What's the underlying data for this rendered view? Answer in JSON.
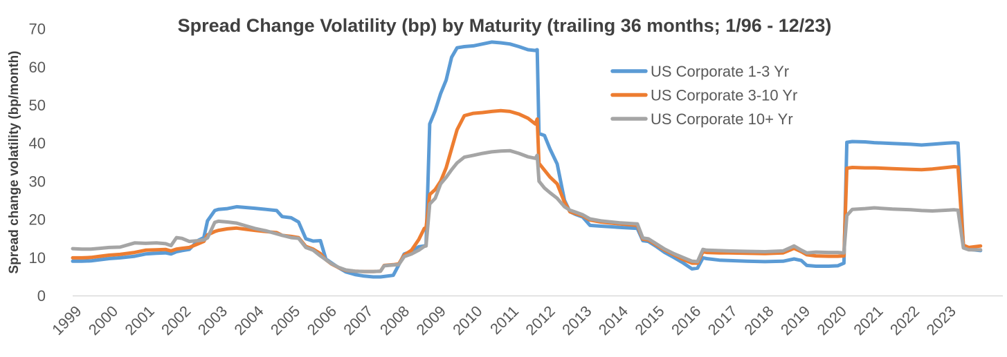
{
  "title": "Spread Change Volatility (bp) by Maturity (trailing 36 months; 1/96 - 12/23)",
  "y_axis": {
    "label": "Spread change volatility (bp/month)",
    "ticks": [
      0,
      10,
      20,
      30,
      40,
      50,
      60,
      70
    ],
    "range": [
      0,
      70
    ]
  },
  "x_axis": {
    "tick_labels": [
      "1999",
      "2000",
      "2001",
      "2002",
      "2003",
      "2004",
      "2005",
      "2006",
      "2007",
      "2008",
      "2009",
      "2010",
      "2011",
      "2012",
      "2013",
      "2014",
      "2015",
      "2016",
      "2017",
      "2018",
      "2019",
      "2020",
      "2021",
      "2022",
      "2023"
    ]
  },
  "legend": [
    {
      "label": "US Corporate 1-3 Yr",
      "color": "#5B9BD5"
    },
    {
      "label": "US Corporate 3-10 Yr",
      "color": "#ED7D31"
    },
    {
      "label": "US Corporate 10+ Yr",
      "color": "#A5A5A5"
    }
  ],
  "colors": {
    "series_blue": "#5B9BD5",
    "series_orange": "#ED7D31",
    "series_gray": "#A5A5A5",
    "tick_text": "#595959",
    "title_text": "#404040",
    "axis_line": "#D9D9D9"
  },
  "chart_data": {
    "type": "line",
    "title": "Spread Change Volatility (bp) by Maturity (trailing 36 months; 1/96 - 12/23)",
    "xlabel": "",
    "ylabel": "Spread change volatility (bp/month)",
    "ylim": [
      0,
      70
    ],
    "xlim": [
      1999,
      2024
    ],
    "grid": false,
    "legend_position": "inside-top-right",
    "x_units": "decimal years (monthly observations, trailing 36-month window)",
    "y_units": "bp/month",
    "x": [
      1999.0,
      1999.25,
      1999.5,
      1999.75,
      2000.0,
      2000.3,
      2000.7,
      2001.0,
      2001.3,
      2001.55,
      2001.7,
      2001.85,
      2002.0,
      2002.2,
      2002.45,
      2002.6,
      2002.7,
      2002.9,
      2003.0,
      2003.25,
      2003.5,
      2003.75,
      2004.0,
      2004.3,
      2004.6,
      2004.75,
      2005.0,
      2005.2,
      2005.4,
      2005.6,
      2005.8,
      2005.95,
      2006.1,
      2006.3,
      2006.5,
      2006.75,
      2007.0,
      2007.25,
      2007.45,
      2007.55,
      2007.8,
      2007.95,
      2008.1,
      2008.3,
      2008.5,
      2008.65,
      2008.7,
      2008.8,
      2008.95,
      2009.1,
      2009.25,
      2009.4,
      2009.55,
      2009.75,
      2010.0,
      2010.25,
      2010.5,
      2010.75,
      2011.0,
      2011.25,
      2011.5,
      2011.7,
      2011.75,
      2011.8,
      2011.95,
      2012.1,
      2012.3,
      2012.5,
      2012.65,
      2012.8,
      2013.0,
      2013.2,
      2013.5,
      2014.0,
      2014.5,
      2014.65,
      2014.8,
      2015.0,
      2015.25,
      2015.5,
      2015.75,
      2016.0,
      2016.15,
      2016.3,
      2016.4,
      2016.75,
      2017.0,
      2017.5,
      2018.0,
      2018.5,
      2018.8,
      2019.0,
      2019.15,
      2019.4,
      2019.75,
      2020.0,
      2020.17,
      2020.25,
      2020.4,
      2020.75,
      2021.0,
      2021.5,
      2022.0,
      2022.3,
      2022.6,
      2023.0,
      2023.2,
      2023.3,
      2023.45,
      2023.6,
      2023.92
    ],
    "series": [
      {
        "name": "US Corporate 1-3 Yr",
        "color": "#5B9BD5",
        "values": [
          9.0,
          9.0,
          9.1,
          9.4,
          9.7,
          9.9,
          10.3,
          10.9,
          11.1,
          11.2,
          10.9,
          11.5,
          11.8,
          12.1,
          14.5,
          15.2,
          19.6,
          22.3,
          22.6,
          22.8,
          23.3,
          23.1,
          22.9,
          22.6,
          22.3,
          20.7,
          20.4,
          19.3,
          14.9,
          14.3,
          14.4,
          9.6,
          8.6,
          7.3,
          6.2,
          5.5,
          5.1,
          4.9,
          4.9,
          5.0,
          5.3,
          8.0,
          10.9,
          11.6,
          12.8,
          13.0,
          13.2,
          45.0,
          48.5,
          53.0,
          56.5,
          62.5,
          65.0,
          65.3,
          65.5,
          66.0,
          66.5,
          66.3,
          66.0,
          65.3,
          64.5,
          64.3,
          64.5,
          42.5,
          42.0,
          38.5,
          34.5,
          25.0,
          22.0,
          21.3,
          20.6,
          18.4,
          18.2,
          17.9,
          17.6,
          14.4,
          14.2,
          13.0,
          11.3,
          10.0,
          8.6,
          7.0,
          7.2,
          9.9,
          9.7,
          9.3,
          9.2,
          9.0,
          8.9,
          9.0,
          9.6,
          9.2,
          7.9,
          7.7,
          7.7,
          7.8,
          8.5,
          40.2,
          40.4,
          40.3,
          40.1,
          39.9,
          39.7,
          39.5,
          39.7,
          40.0,
          40.1,
          40.0,
          13.0,
          12.1,
          11.8
        ]
      },
      {
        "name": "US Corporate 3-10 Yr",
        "color": "#ED7D31",
        "values": [
          9.9,
          9.9,
          10.0,
          10.3,
          10.6,
          10.8,
          11.3,
          11.9,
          12.0,
          12.1,
          11.7,
          12.2,
          12.4,
          12.6,
          13.6,
          14.2,
          15.9,
          16.8,
          17.1,
          17.5,
          17.7,
          17.4,
          17.1,
          16.8,
          16.5,
          15.8,
          15.5,
          15.2,
          12.9,
          12.2,
          11.0,
          9.4,
          8.3,
          7.3,
          6.6,
          6.4,
          6.3,
          6.3,
          6.4,
          7.9,
          8.1,
          8.3,
          10.6,
          11.9,
          14.7,
          17.6,
          17.8,
          26.5,
          27.8,
          30.0,
          33.5,
          38.5,
          43.5,
          47.2,
          47.8,
          48.0,
          48.3,
          48.5,
          48.3,
          47.6,
          46.5,
          45.0,
          46.3,
          34.7,
          32.9,
          31.1,
          29.3,
          24.5,
          22.0,
          21.5,
          20.9,
          19.8,
          19.3,
          18.8,
          18.4,
          14.8,
          14.6,
          13.4,
          11.9,
          10.7,
          9.5,
          8.5,
          8.5,
          11.5,
          11.3,
          11.2,
          11.2,
          11.1,
          11.0,
          11.2,
          12.4,
          11.5,
          10.7,
          10.4,
          10.3,
          10.3,
          10.4,
          33.4,
          33.6,
          33.5,
          33.5,
          33.3,
          33.1,
          33.0,
          33.2,
          33.6,
          33.8,
          33.7,
          13.2,
          12.6,
          13.0
        ]
      },
      {
        "name": "US Corporate 10+ Yr",
        "color": "#A5A5A5",
        "values": [
          12.3,
          12.2,
          12.2,
          12.4,
          12.6,
          12.7,
          13.8,
          13.7,
          13.8,
          13.6,
          13.1,
          15.2,
          15.0,
          14.2,
          14.4,
          14.6,
          15.1,
          19.2,
          19.5,
          19.3,
          19.0,
          18.3,
          17.6,
          17.0,
          16.2,
          15.8,
          15.2,
          15.0,
          12.6,
          11.9,
          10.4,
          9.4,
          8.4,
          7.4,
          6.7,
          6.4,
          6.3,
          6.3,
          6.4,
          7.8,
          8.0,
          8.1,
          10.2,
          10.9,
          11.9,
          12.9,
          13.0,
          24.0,
          25.5,
          29.3,
          31.0,
          33.0,
          34.8,
          36.3,
          36.8,
          37.3,
          37.7,
          37.9,
          38.0,
          37.3,
          36.4,
          36.0,
          36.8,
          30.0,
          28.2,
          27.0,
          25.5,
          23.3,
          22.4,
          21.9,
          21.2,
          20.1,
          19.6,
          19.1,
          18.8,
          15.1,
          14.9,
          13.7,
          12.2,
          11.0,
          10.0,
          9.0,
          8.9,
          12.1,
          11.9,
          11.8,
          11.7,
          11.6,
          11.5,
          11.7,
          13.0,
          11.9,
          11.2,
          11.4,
          11.3,
          11.3,
          11.2,
          21.0,
          22.6,
          22.8,
          23.0,
          22.7,
          22.5,
          22.3,
          22.2,
          22.4,
          22.5,
          22.4,
          12.5,
          12.0,
          12.0
        ]
      }
    ]
  }
}
